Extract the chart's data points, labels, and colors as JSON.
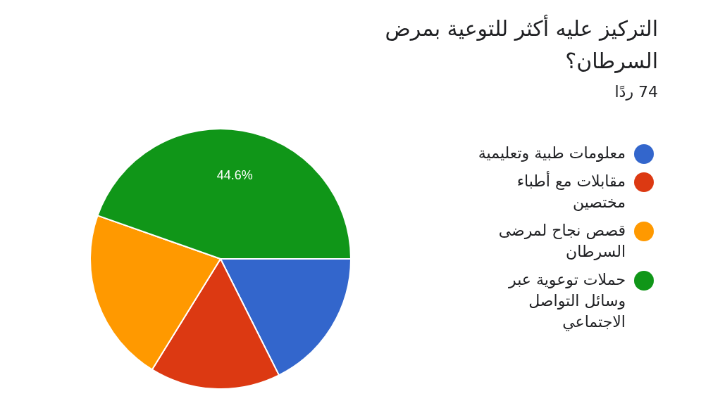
{
  "chart_data": {
    "type": "pie",
    "title": "التركيز عليه أكثر للتوعية بمرض السرطان؟",
    "subtitle": "74 ردًا",
    "categories": [
      "معلومات طبية وتعليمية",
      "مقابلات مع أطباء مختصين",
      "قصص نجاح لمرضى السرطان",
      "حملات توعوية عبر وسائل التواصل الاجتماعي"
    ],
    "values": [
      17.6,
      16.2,
      21.6,
      44.6
    ],
    "colors": [
      "#3366cc",
      "#dc3912",
      "#ff9900",
      "#109618"
    ],
    "value_labels": [
      null,
      null,
      null,
      "44.6%"
    ],
    "legend": "right"
  }
}
